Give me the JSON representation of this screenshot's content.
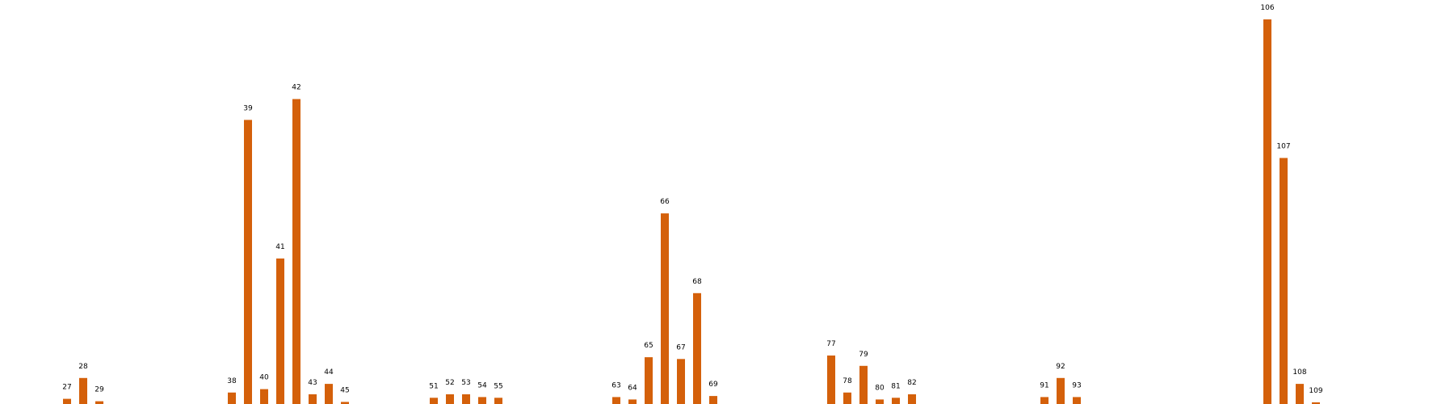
{
  "chart_data": {
    "type": "bar",
    "title": "",
    "xlabel": "",
    "ylabel": "",
    "ylim": [
      0,
      106
    ],
    "grid": false,
    "bar_color": "#d4600a",
    "background": "#ffffff",
    "axis_line_color": "#d4600a",
    "categories": [
      "27",
      "28",
      "29",
      "38",
      "39",
      "40",
      "41",
      "42",
      "43",
      "44",
      "45",
      "51",
      "52",
      "53",
      "54",
      "55",
      "63",
      "64",
      "65",
      "66",
      "67",
      "68",
      "69",
      "77",
      "78",
      "79",
      "80",
      "81",
      "82",
      "91",
      "92",
      "93",
      "106",
      "107",
      "108",
      "109"
    ],
    "values": [
      1.5,
      7.5,
      0.8,
      3.3,
      82,
      4.3,
      42,
      88,
      2.8,
      5.8,
      0.6,
      1.8,
      2.8,
      2.8,
      2.0,
      1.8,
      2.0,
      1.3,
      13.5,
      55,
      13,
      32,
      2.3,
      14,
      3.3,
      11,
      1.3,
      1.8,
      2.8,
      2.0,
      7.5,
      2.0,
      111,
      71,
      5.8,
      0.5
    ]
  }
}
